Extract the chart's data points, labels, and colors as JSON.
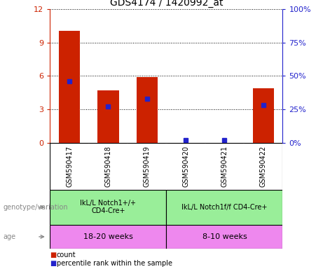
{
  "title": "GDS4174 / 1420992_at",
  "samples": [
    "GSM590417",
    "GSM590418",
    "GSM590419",
    "GSM590420",
    "GSM590421",
    "GSM590422"
  ],
  "count_values": [
    10.1,
    4.7,
    5.9,
    0.0,
    0.0,
    4.9
  ],
  "percentile_values": [
    46,
    27,
    33,
    2,
    2,
    28
  ],
  "left_ylim": [
    0,
    12
  ],
  "right_ylim": [
    0,
    100
  ],
  "left_yticks": [
    0,
    3,
    6,
    9,
    12
  ],
  "right_yticks": [
    0,
    25,
    50,
    75,
    100
  ],
  "left_yticklabels": [
    "0",
    "3",
    "6",
    "9",
    "12"
  ],
  "right_yticklabels": [
    "0%",
    "25%",
    "50%",
    "75%",
    "100%"
  ],
  "bar_color": "#cc2200",
  "dot_color": "#2222cc",
  "genotype_group1": "IkL/L Notch1+/+\nCD4-Cre+",
  "genotype_group2": "IkL/L Notch1f/f CD4-Cre+",
  "age_group1": "18-20 weeks",
  "age_group2": "8-10 weeks",
  "genotype_bg": "#99ee99",
  "age_bg": "#ee88ee",
  "sample_bg": "#cccccc",
  "legend_count_color": "#cc2200",
  "legend_dot_color": "#2222cc",
  "legend_count_label": "count",
  "legend_dot_label": "percentile rank within the sample",
  "left_tick_color": "#cc2200",
  "right_tick_color": "#2222cc",
  "label_color": "#888888"
}
